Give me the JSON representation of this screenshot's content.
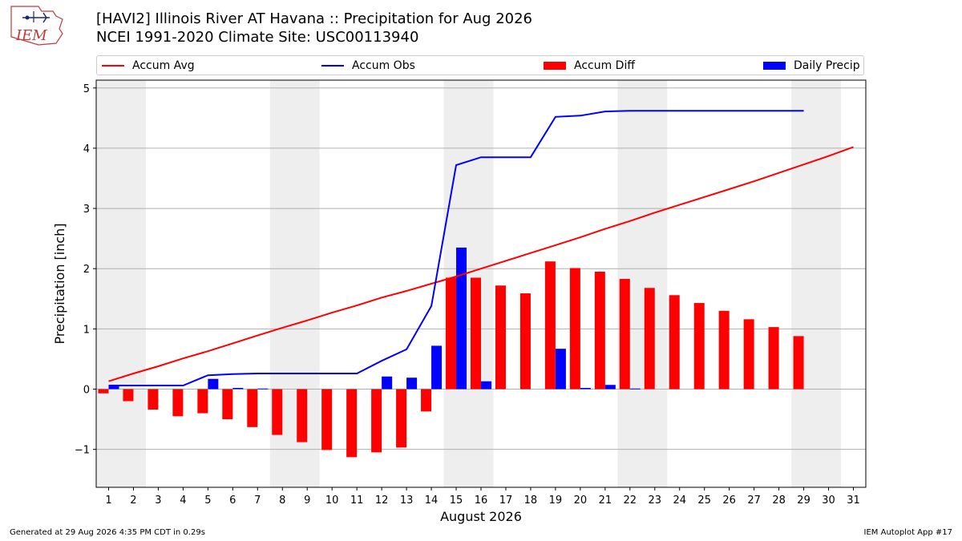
{
  "header": {
    "title_line1": "[HAVI2] Illinois River  AT Havana :: Precipitation for Aug 2026",
    "title_line2": "NCEI 1991-2020 Climate Site: USC00113940",
    "logo_text": "IEM"
  },
  "legend": {
    "items": [
      {
        "label": "Accum Avg",
        "kind": "line",
        "color": "#ff0000"
      },
      {
        "label": "Accum Obs",
        "kind": "line",
        "color": "#0000ff"
      },
      {
        "label": "Accum Diff",
        "kind": "box",
        "color": "#ff0000"
      },
      {
        "label": "Daily Precip",
        "kind": "box",
        "color": "#0000ff"
      }
    ]
  },
  "footer": {
    "left": "Generated at 29 Aug 2026 4:35 PM CDT in 0.29s",
    "right": "IEM Autoplot App #17"
  },
  "chart_data": {
    "type": "bar",
    "xlabel": "August 2026",
    "ylabel": "Precipitation [inch]",
    "xlim": [
      0.5,
      31.5
    ],
    "ylim": [
      -1.63,
      5.13
    ],
    "yticks": [
      -1,
      0,
      1,
      2,
      3,
      4,
      5
    ],
    "ytick_labels": [
      "−1",
      "0",
      "1",
      "2",
      "3",
      "4",
      "5"
    ],
    "xticks": [
      1,
      2,
      3,
      4,
      5,
      6,
      7,
      8,
      9,
      10,
      11,
      12,
      13,
      14,
      15,
      16,
      17,
      18,
      19,
      20,
      21,
      22,
      23,
      24,
      25,
      26,
      27,
      28,
      29,
      30,
      31
    ],
    "weekend_shading": [
      [
        0.5,
        2.5
      ],
      [
        7.5,
        9.5
      ],
      [
        14.5,
        16.5
      ],
      [
        21.5,
        23.5
      ],
      [
        28.5,
        30.5
      ]
    ],
    "grid": true,
    "colors": {
      "avg": "#ff0000",
      "obs": "#0000ff",
      "shade": "#eeeeee",
      "grid": "#b0b0b0"
    },
    "series": [
      {
        "name": "Accum Avg",
        "kind": "line",
        "x": [
          1,
          2,
          3,
          4,
          5,
          6,
          7,
          8,
          9,
          10,
          11,
          12,
          13,
          14,
          15,
          16,
          17,
          18,
          19,
          20,
          21,
          22,
          23,
          24,
          25,
          26,
          27,
          28,
          29,
          30,
          31
        ],
        "values": [
          0.13,
          0.26,
          0.38,
          0.51,
          0.63,
          0.76,
          0.89,
          1.02,
          1.14,
          1.27,
          1.39,
          1.52,
          1.63,
          1.75,
          1.87,
          2.0,
          2.13,
          2.26,
          2.39,
          2.52,
          2.66,
          2.79,
          2.93,
          3.06,
          3.19,
          3.32,
          3.45,
          3.59,
          3.73,
          3.87,
          4.02
        ]
      },
      {
        "name": "Accum Obs",
        "kind": "line",
        "x": [
          1,
          2,
          3,
          4,
          5,
          6,
          7,
          8,
          9,
          10,
          11,
          12,
          13,
          14,
          15,
          16,
          17,
          18,
          19,
          20,
          21,
          22,
          23,
          24,
          25,
          26,
          27,
          28,
          29
        ],
        "values": [
          0.06,
          0.06,
          0.06,
          0.06,
          0.23,
          0.25,
          0.26,
          0.26,
          0.26,
          0.26,
          0.26,
          0.47,
          0.66,
          1.38,
          3.72,
          3.85,
          3.85,
          3.85,
          4.52,
          4.54,
          4.61,
          4.62,
          4.62,
          4.62,
          4.62,
          4.62,
          4.62,
          4.62,
          4.62
        ]
      },
      {
        "name": "Accum Diff",
        "kind": "bar",
        "x": [
          1,
          2,
          3,
          4,
          5,
          6,
          7,
          8,
          9,
          10,
          11,
          12,
          13,
          14,
          15,
          16,
          17,
          18,
          19,
          20,
          21,
          22,
          23,
          24,
          25,
          26,
          27,
          28,
          29
        ],
        "values": [
          -0.07,
          -0.2,
          -0.34,
          -0.45,
          -0.4,
          -0.5,
          -0.63,
          -0.76,
          -0.88,
          -1.01,
          -1.13,
          -1.05,
          -0.97,
          -0.37,
          1.85,
          1.85,
          1.72,
          1.59,
          2.12,
          2.01,
          1.95,
          1.83,
          1.68,
          1.56,
          1.43,
          1.3,
          1.16,
          1.03,
          0.88
        ]
      },
      {
        "name": "Daily Precip",
        "kind": "bar",
        "x": [
          1,
          2,
          3,
          4,
          5,
          6,
          7,
          8,
          9,
          10,
          11,
          12,
          13,
          14,
          15,
          16,
          17,
          18,
          19,
          20,
          21,
          22,
          23,
          24,
          25,
          26,
          27,
          28,
          29
        ],
        "values": [
          0.06,
          0,
          0,
          0,
          0.17,
          0.02,
          0.01,
          0,
          0,
          0,
          0,
          0.21,
          0.19,
          0.72,
          2.35,
          0.13,
          0,
          0,
          0.67,
          0.02,
          0.07,
          0.01,
          0,
          0,
          0,
          0,
          0,
          0,
          0
        ]
      }
    ]
  }
}
